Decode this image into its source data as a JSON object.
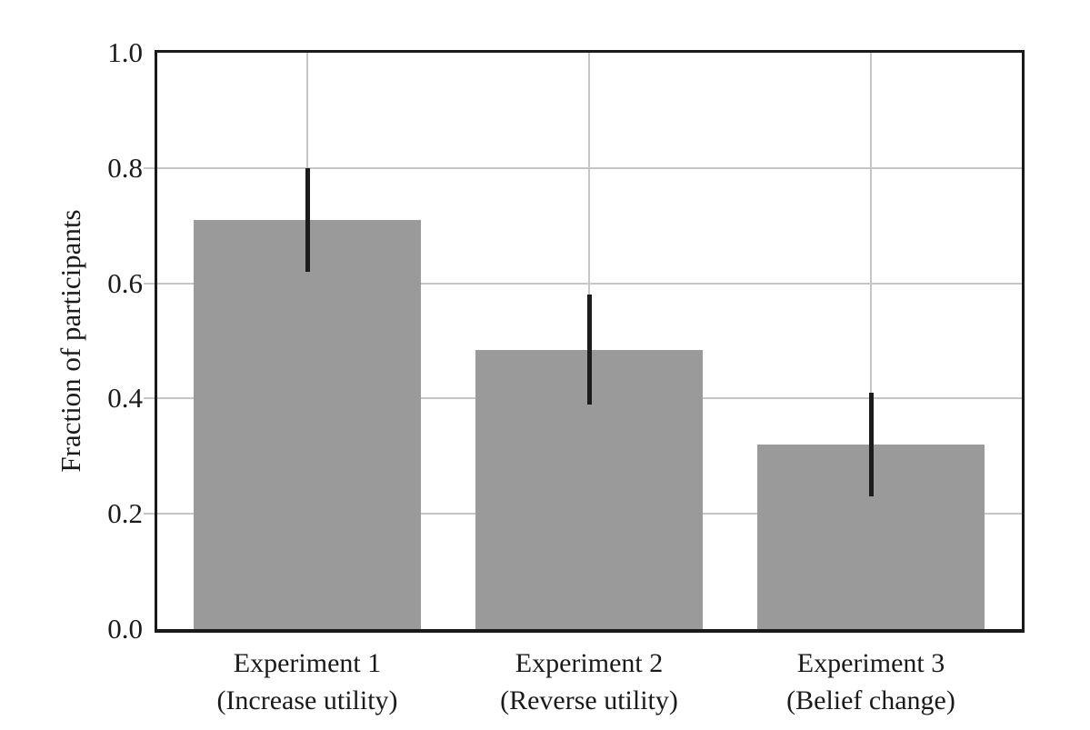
{
  "chart_data": {
    "type": "bar",
    "title": "",
    "xlabel": "",
    "ylabel": "Fraction of participants",
    "ylim": [
      0.0,
      1.0
    ],
    "yticks": [
      0.0,
      0.2,
      0.4,
      0.6,
      0.8,
      1.0
    ],
    "ytick_labels": [
      "0.0",
      "0.2",
      "0.4",
      "0.6",
      "0.8",
      "1.0"
    ],
    "grid": "on",
    "legend": "none",
    "categories": [
      {
        "label": "Experiment 1",
        "sublabel": "(Increase utility)"
      },
      {
        "label": "Experiment 2",
        "sublabel": "(Reverse utility)"
      },
      {
        "label": "Experiment 3",
        "sublabel": "(Belief change)"
      }
    ],
    "series": [
      {
        "name": "Fraction of participants",
        "values": [
          0.71,
          0.485,
          0.32
        ],
        "error_low": [
          0.62,
          0.39,
          0.23
        ],
        "error_high": [
          0.8,
          0.58,
          0.41
        ]
      }
    ],
    "colors": {
      "bar": "#9a9a9a",
      "error_bar": "#1c1c1c",
      "grid": "#c6c6c6",
      "axis": "#1a1a1a",
      "text": "#1a1a1a",
      "background": "#ffffff"
    }
  }
}
